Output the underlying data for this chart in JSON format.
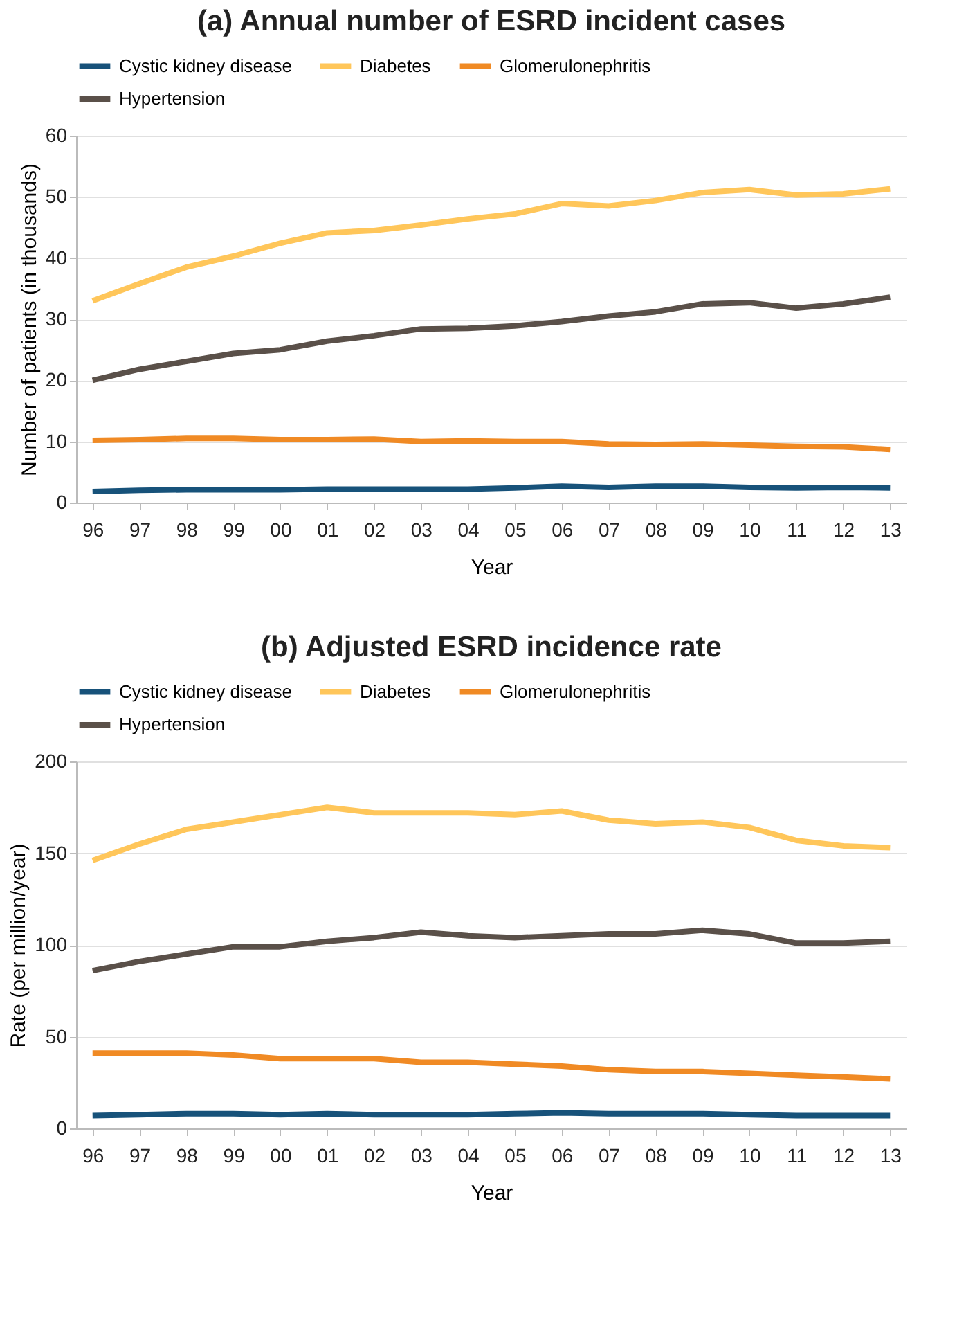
{
  "chart_data": [
    {
      "type": "line",
      "title": "(a) Annual number of ESRD incident cases",
      "xlabel": "Year",
      "ylabel": "Number of patients (in thousands)",
      "categories": [
        "96",
        "97",
        "98",
        "99",
        "00",
        "01",
        "02",
        "03",
        "04",
        "05",
        "06",
        "07",
        "08",
        "09",
        "10",
        "11",
        "12",
        "13"
      ],
      "ylim": [
        0,
        60
      ],
      "yticks": [
        0,
        10,
        20,
        30,
        40,
        50,
        60
      ],
      "grid": "y",
      "legend": "top",
      "marker": "none",
      "line_style": "solid",
      "series": [
        {
          "name": "Cystic kidney disease",
          "color": "#17527a",
          "values": [
            1.8,
            2.0,
            2.1,
            2.1,
            2.1,
            2.2,
            2.2,
            2.2,
            2.2,
            2.4,
            2.7,
            2.5,
            2.7,
            2.7,
            2.5,
            2.4,
            2.5,
            2.4
          ]
        },
        {
          "name": "Diabetes",
          "color": "#ffc65a",
          "values": [
            33,
            35.8,
            38.5,
            40.3,
            42.4,
            44.1,
            44.5,
            45.4,
            46.4,
            47.2,
            48.9,
            48.5,
            49.4,
            50.7,
            51.2,
            50.3,
            50.5,
            51.3
          ]
        },
        {
          "name": "Glomerulonephritis",
          "color": "#f08a24",
          "values": [
            10.2,
            10.3,
            10.5,
            10.5,
            10.3,
            10.3,
            10.4,
            10.0,
            10.1,
            10.0,
            10.0,
            9.6,
            9.5,
            9.6,
            9.4,
            9.2,
            9.1,
            8.7
          ]
        },
        {
          "name": "Hypertension",
          "color": "#5a5049",
          "values": [
            20,
            21.8,
            23.1,
            24.4,
            25,
            26.4,
            27.3,
            28.4,
            28.5,
            28.9,
            29.6,
            30.5,
            31.2,
            32.5,
            32.7,
            31.8,
            32.5,
            33.6
          ]
        }
      ]
    },
    {
      "type": "line",
      "title": "(b) Adjusted ESRD incidence rate",
      "xlabel": "Year",
      "ylabel": "Rate (per million/year)",
      "categories": [
        "96",
        "97",
        "98",
        "99",
        "00",
        "01",
        "02",
        "03",
        "04",
        "05",
        "06",
        "07",
        "08",
        "09",
        "10",
        "11",
        "12",
        "13"
      ],
      "ylim": [
        0,
        200
      ],
      "yticks": [
        0,
        50,
        100,
        150,
        200
      ],
      "grid": "y",
      "legend": "top",
      "marker": "none",
      "line_style": "solid",
      "series": [
        {
          "name": "Cystic kidney disease",
          "color": "#17527a",
          "values": [
            7,
            7.5,
            8,
            8,
            7.5,
            8,
            7.5,
            7.5,
            7.5,
            8,
            8.5,
            8,
            8,
            8,
            7.5,
            7,
            7,
            7
          ]
        },
        {
          "name": "Diabetes",
          "color": "#ffc65a",
          "values": [
            146,
            155,
            163,
            167,
            171,
            175,
            172,
            172,
            172,
            171,
            173,
            168,
            166,
            167,
            164,
            157,
            154,
            153
          ]
        },
        {
          "name": "Glomerulonephritis",
          "color": "#f08a24",
          "values": [
            41,
            41,
            41,
            40,
            38,
            38,
            38,
            36,
            36,
            35,
            34,
            32,
            31,
            31,
            30,
            29,
            28,
            27
          ]
        },
        {
          "name": "Hypertension",
          "color": "#5a5049",
          "values": [
            86,
            91,
            95,
            99,
            99,
            102,
            104,
            107,
            105,
            104,
            105,
            106,
            106,
            108,
            106,
            101,
            101,
            102
          ]
        }
      ]
    }
  ]
}
